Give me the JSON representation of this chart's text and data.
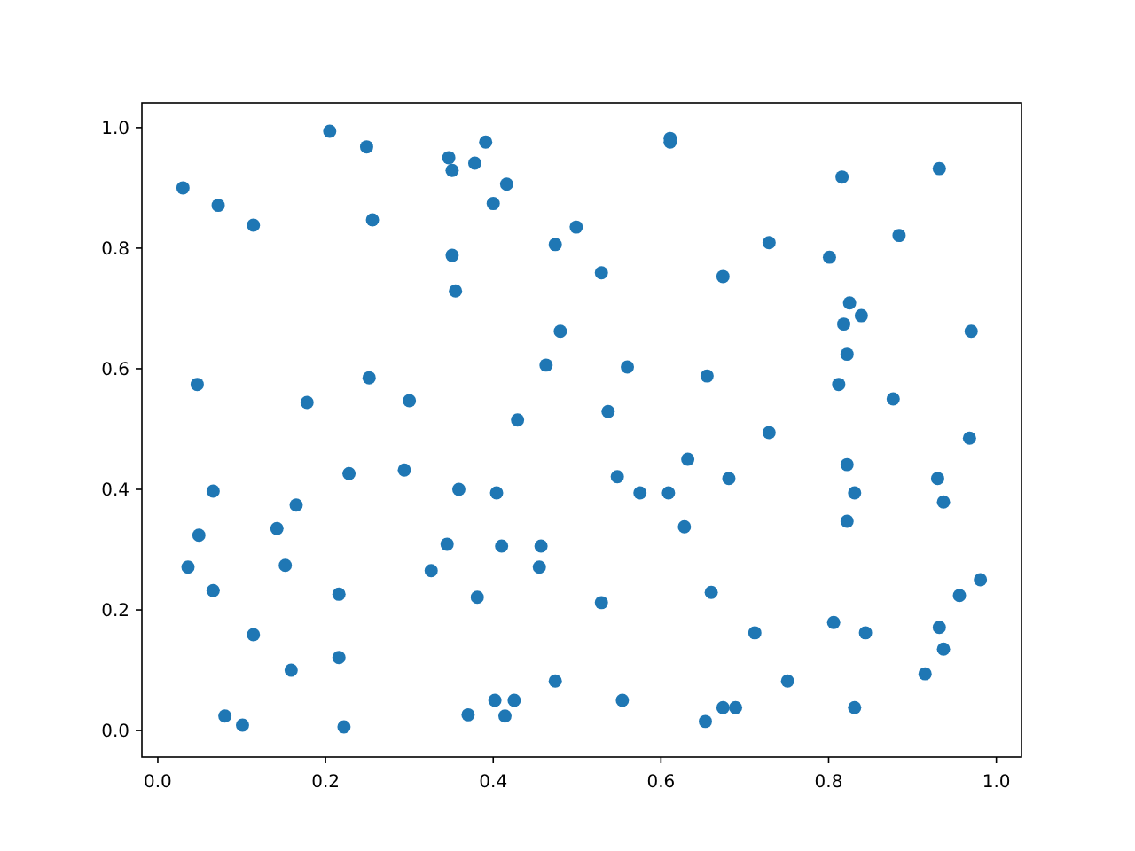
{
  "chart_data": {
    "type": "scatter",
    "marker": "circle",
    "grid": false,
    "xlim": [
      -0.019,
      1.03
    ],
    "ylim": [
      -0.044,
      1.041
    ],
    "xticks": [
      {
        "value": 0,
        "label": "0.0"
      },
      {
        "value": 0.2,
        "label": "0.2"
      },
      {
        "value": 0.4,
        "label": "0.4"
      },
      {
        "value": 0.6,
        "label": "0.6"
      },
      {
        "value": 0.8,
        "label": "0.8"
      },
      {
        "value": 1,
        "label": "1.0"
      }
    ],
    "yticks": [
      {
        "value": 0,
        "label": "0.0"
      },
      {
        "value": 0.2,
        "label": "0.2"
      },
      {
        "value": 0.4,
        "label": "0.4"
      },
      {
        "value": 0.6,
        "label": "0.6"
      },
      {
        "value": 0.8,
        "label": "0.8"
      },
      {
        "value": 1,
        "label": "1.0"
      }
    ],
    "series": [
      {
        "color": "#1f77b4",
        "x": [
          0.205,
          0.03,
          0.072,
          0.114,
          0.249,
          0.256,
          0.347,
          0.351,
          0.378,
          0.391,
          0.416,
          0.4,
          0.351,
          0.355,
          0.499,
          0.474,
          0.529,
          0.48,
          0.463,
          0.56,
          0.611,
          0.611,
          0.729,
          0.674,
          0.816,
          0.932,
          0.801,
          0.884,
          0.825,
          0.839,
          0.818,
          0.822,
          0.97,
          0.812,
          0.877,
          0.968,
          0.655,
          0.729,
          0.632,
          0.681,
          0.628,
          0.609,
          0.575,
          0.548,
          0.537,
          0.822,
          0.831,
          0.822,
          0.93,
          0.937,
          0.047,
          0.178,
          0.252,
          0.3,
          0.429,
          0.066,
          0.049,
          0.036,
          0.066,
          0.142,
          0.165,
          0.152,
          0.228,
          0.294,
          0.359,
          0.404,
          0.345,
          0.326,
          0.41,
          0.457,
          0.455,
          0.381,
          0.216,
          0.114,
          0.159,
          0.216,
          0.08,
          0.101,
          0.222,
          0.37,
          0.402,
          0.414,
          0.425,
          0.474,
          0.529,
          0.554,
          0.66,
          0.712,
          0.653,
          0.674,
          0.689,
          0.751,
          0.806,
          0.844,
          0.831,
          0.932,
          0.937,
          0.915,
          0.956,
          0.981
        ],
        "values": [
          0.994,
          0.9,
          0.871,
          0.838,
          0.968,
          0.847,
          0.95,
          0.929,
          0.941,
          0.976,
          0.906,
          0.874,
          0.788,
          0.729,
          0.835,
          0.806,
          0.759,
          0.662,
          0.606,
          0.603,
          0.982,
          0.976,
          0.809,
          0.753,
          0.918,
          0.932,
          0.785,
          0.821,
          0.709,
          0.688,
          0.674,
          0.624,
          0.662,
          0.574,
          0.55,
          0.485,
          0.588,
          0.494,
          0.45,
          0.418,
          0.338,
          0.394,
          0.394,
          0.421,
          0.529,
          0.441,
          0.394,
          0.347,
          0.418,
          0.379,
          0.574,
          0.544,
          0.585,
          0.547,
          0.515,
          0.397,
          0.324,
          0.271,
          0.232,
          0.335,
          0.374,
          0.274,
          0.426,
          0.432,
          0.4,
          0.394,
          0.309,
          0.265,
          0.306,
          0.306,
          0.271,
          0.221,
          0.226,
          0.159,
          0.1,
          0.121,
          0.024,
          0.009,
          0.006,
          0.026,
          0.05,
          0.024,
          0.05,
          0.082,
          0.212,
          0.05,
          0.229,
          0.162,
          0.015,
          0.038,
          0.038,
          0.082,
          0.179,
          0.162,
          0.038,
          0.171,
          0.135,
          0.094,
          0.224,
          0.25
        ]
      }
    ]
  }
}
